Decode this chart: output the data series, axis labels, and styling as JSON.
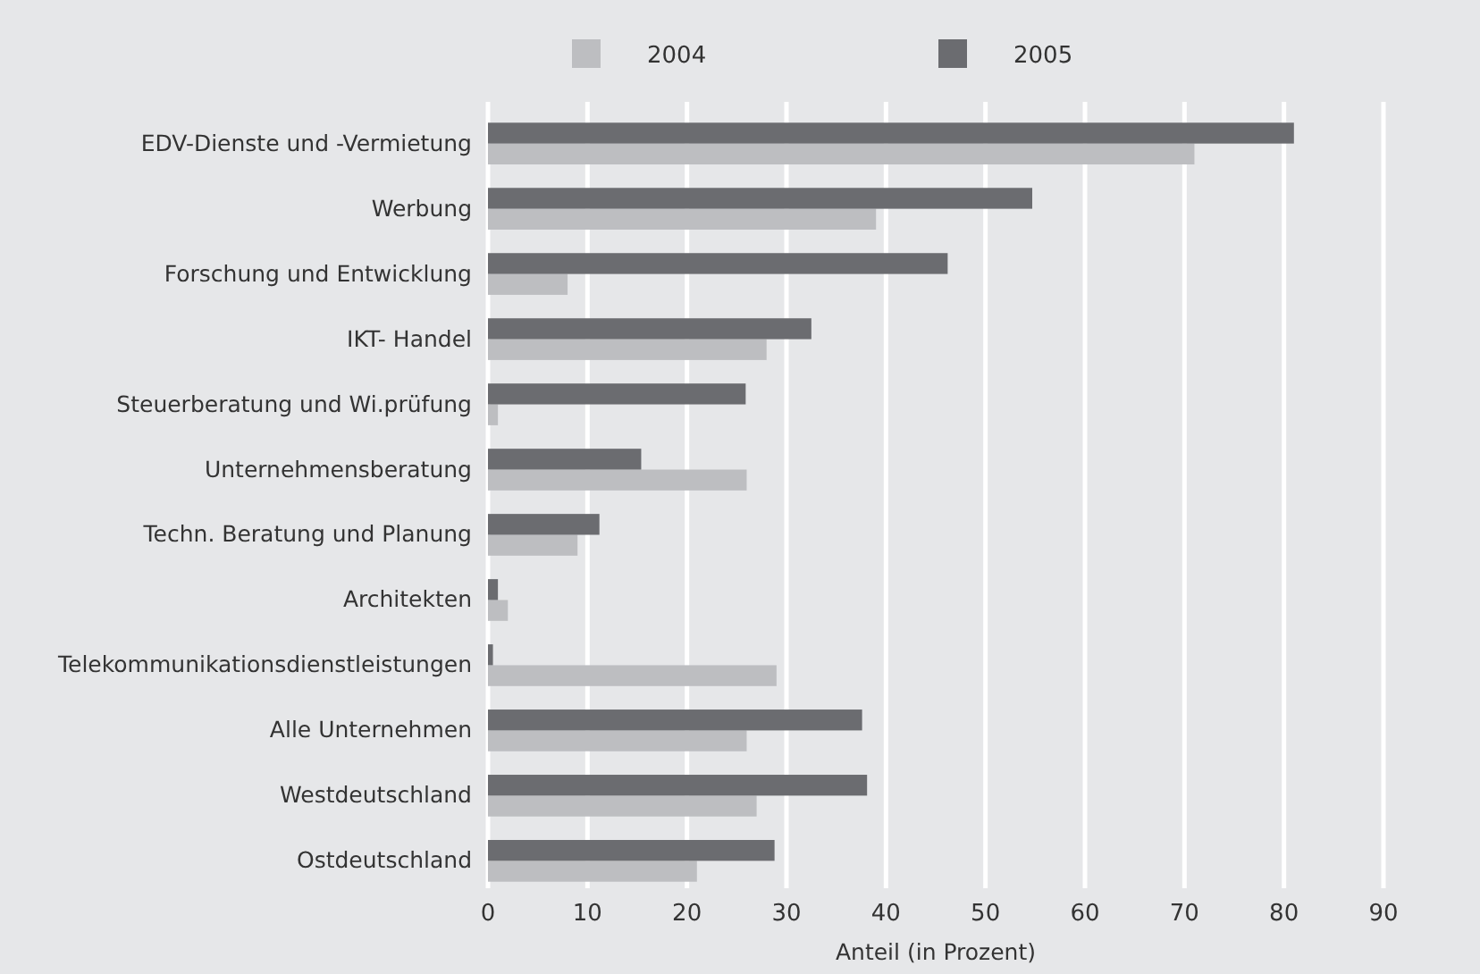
{
  "chart_data": {
    "type": "bar",
    "orientation": "horizontal",
    "xlabel": "Anteil (in Prozent)",
    "categories": [
      "EDV-Dienste und -Vermietung",
      "Werbung",
      "Forschung und Entwicklung",
      "IKT- Handel",
      "Steuerberatung und Wi.prüfung",
      "Unternehmensberatung",
      "Techn. Beratung und Planung",
      "Architekten",
      "Telekommunikationsdienstleistungen",
      "Alle Unternehmen",
      "Westdeutschland",
      "Ostdeutschland"
    ],
    "series": [
      {
        "name": "2004",
        "color": "#bdbec1",
        "values": [
          71,
          39,
          8,
          28,
          1,
          26,
          9,
          2,
          29,
          26,
          27,
          21
        ]
      },
      {
        "name": "2005",
        "color": "#6b6c70",
        "values": [
          81,
          54.7,
          46.2,
          32.5,
          25.9,
          15.4,
          11.2,
          1,
          0.5,
          37.6,
          38.1,
          28.8
        ]
      }
    ],
    "xlim": [
      0,
      90
    ],
    "xticks": [
      0,
      10,
      20,
      30,
      40,
      50,
      60,
      70,
      80,
      90
    ],
    "grid": "x",
    "legend": "top"
  }
}
